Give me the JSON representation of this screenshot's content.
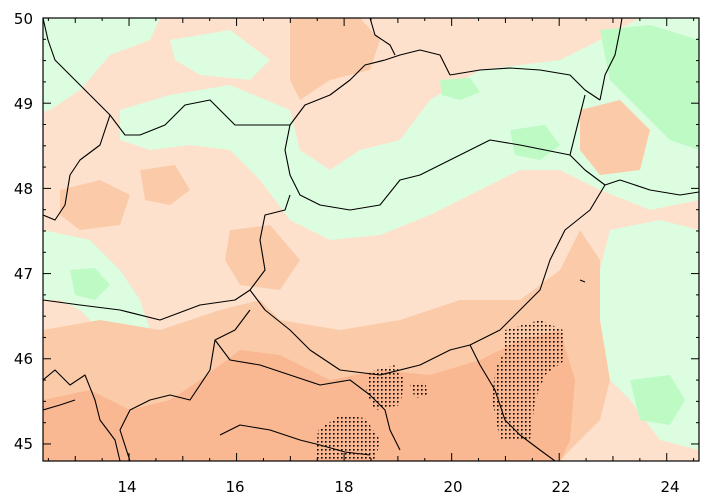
{
  "map": {
    "x_ticks": [
      "14",
      "16",
      "18",
      "20",
      "22",
      "24"
    ],
    "y_ticks": [
      "50",
      "49",
      "48",
      "47",
      "46",
      "45"
    ],
    "x_range": [
      12.4,
      24.6
    ],
    "y_range": [
      44.8,
      50.0
    ],
    "colors": {
      "light_green": "#dcfde0",
      "mid_green": "#bdfac4",
      "light_salmon": "#fde1cc",
      "mid_salmon": "#fbcba9",
      "dark_salmon": "#f9b892",
      "stipple": "#000000"
    }
  }
}
